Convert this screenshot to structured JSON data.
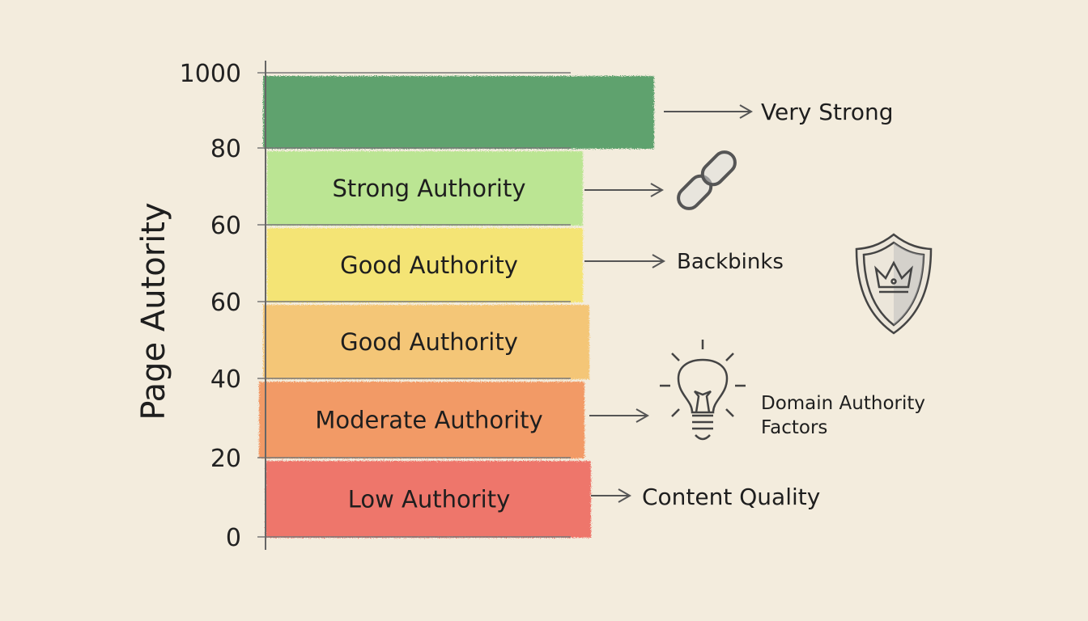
{
  "chart_data": {
    "type": "bar",
    "orientation": "stacked-bands",
    "ylabel": "Page Autority",
    "ytick_labels": [
      "0",
      "20",
      "40",
      "60",
      "60",
      "80",
      "1000"
    ],
    "bands": [
      {
        "label": "Low Authority",
        "from_tick": "0",
        "to_tick": "20",
        "color": "#ee6b5f"
      },
      {
        "label": "Moderate Authority",
        "from_tick": "20",
        "to_tick": "40",
        "color": "#f2925a"
      },
      {
        "label": "Good Authority",
        "from_tick": "40",
        "to_tick": "60",
        "color": "#f5c26c"
      },
      {
        "label": "Good Authority",
        "from_tick": "60",
        "to_tick": "60",
        "color": "#f5e46a"
      },
      {
        "label": "Strong Authority",
        "from_tick": "60",
        "to_tick": "80",
        "color": "#b6e58c"
      },
      {
        "label": "",
        "from_tick": "80",
        "to_tick": "1000",
        "color": "#4f9a62"
      }
    ],
    "grid": true
  },
  "annotations": {
    "very_strong": "Very Strong",
    "backlinks": "Backbinks",
    "domain_line1": "Domain Authority",
    "domain_line2": "Factors",
    "content_quality": "Content Quality"
  },
  "icons": [
    "chain-link-icon",
    "shield-crown-icon",
    "lightbulb-icon"
  ]
}
